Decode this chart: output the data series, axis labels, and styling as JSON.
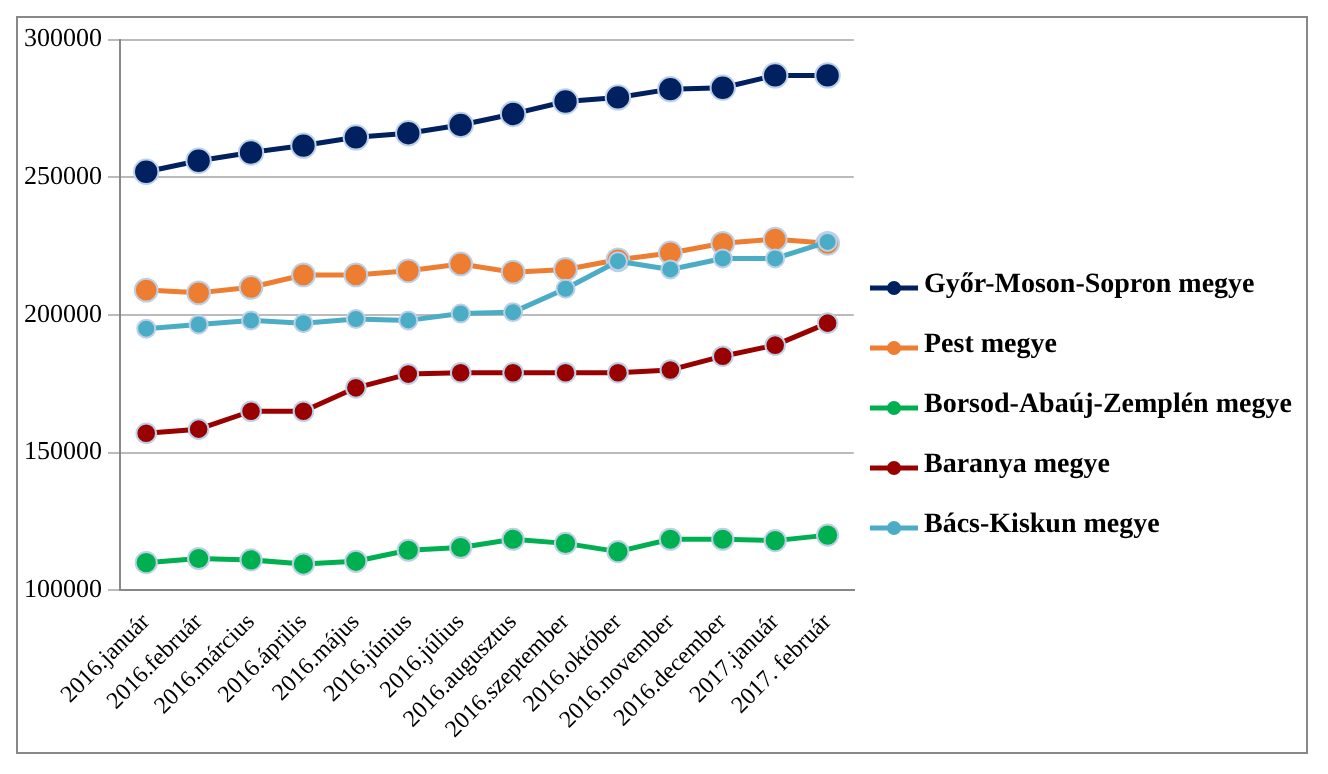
{
  "chart_data": {
    "type": "line",
    "categories": [
      "2016.január",
      "2016.február",
      "2016.március",
      "2016.április",
      "2016.május",
      "2016.június",
      "2016.július",
      "2016.augusztus",
      "2016.szeptember",
      "2016.október",
      "2016.november",
      "2016.december",
      "2017.január",
      "2017. február"
    ],
    "series": [
      {
        "name": "Győr-Moson-Sopron megye",
        "color": "#002060",
        "values": [
          252000,
          256000,
          259000,
          261500,
          264500,
          266000,
          269000,
          273000,
          277500,
          279000,
          282000,
          282500,
          287000,
          287000
        ]
      },
      {
        "name": "Pest megye",
        "color": "#ed7d31",
        "values": [
          209000,
          208000,
          210000,
          214500,
          214500,
          216000,
          218500,
          215500,
          216500,
          220000,
          222500,
          226000,
          227500,
          226000
        ]
      },
      {
        "name": "Borsod-Abaúj-Zemplén megye",
        "color": "#00b050",
        "values": [
          110000,
          111500,
          111000,
          109500,
          110500,
          114500,
          115500,
          118500,
          117000,
          114000,
          118500,
          118500,
          118000,
          120000
        ]
      },
      {
        "name": "Baranya megye",
        "color": "#990000",
        "values": [
          157000,
          158500,
          165000,
          165000,
          173500,
          178500,
          179000,
          179000,
          179000,
          179000,
          180000,
          185000,
          189000,
          197000
        ]
      },
      {
        "name": "Bács-Kiskun megye",
        "color": "#4bacc6",
        "values": [
          195000,
          196500,
          198000,
          197000,
          198500,
          198000,
          200500,
          201000,
          209500,
          219500,
          216500,
          220500,
          220500,
          226500
        ]
      }
    ],
    "ylim": [
      100000,
      300000
    ],
    "yticks": [
      100000,
      150000,
      200000,
      250000,
      300000
    ],
    "grid": "y",
    "legend": "right",
    "marker": "circle",
    "line_style": "solid"
  }
}
